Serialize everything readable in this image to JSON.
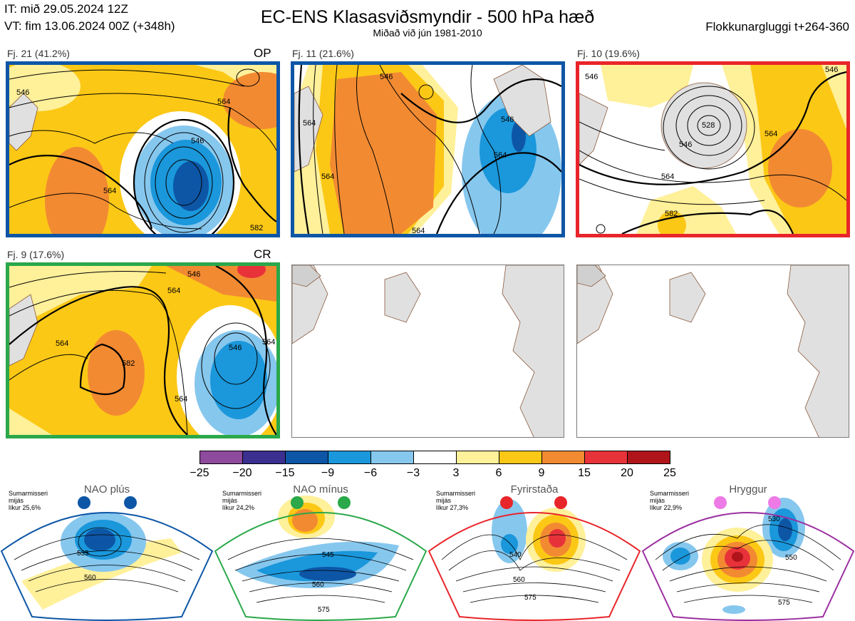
{
  "header": {
    "init_time": "IT: mið 29.05.2024 12Z",
    "valid_time": "VT: fim 13.06.2024 00Z  (+348h)",
    "title": "EC-ENS Klasasviðsmyndir - 500 hPa hæð",
    "subtitle": "Miðað við jún 1981-2010",
    "cluster_window": "Flokkunargluggi t+264-360"
  },
  "clusters": [
    {
      "label": "Fj. 21 (41.2%)",
      "tag": "OP",
      "frame_color": "#0d56a6",
      "regime": "NAO plús",
      "contour_labels": [
        "546",
        "564",
        "564",
        "546",
        "582"
      ]
    },
    {
      "label": "Fj. 11 (21.6%)",
      "tag": "",
      "frame_color": "#0d56a6",
      "regime": "NAO plús",
      "contour_labels": [
        "564",
        "564",
        "546",
        "564",
        "546",
        "564"
      ]
    },
    {
      "label": "Fj. 10 (19.6%)",
      "tag": "",
      "frame_color": "#e8252a",
      "regime": "Fyrirstaða",
      "contour_labels": [
        "546",
        "528",
        "546",
        "564",
        "564",
        "582",
        "546"
      ]
    },
    {
      "label": "Fj. 9 (17.6%)",
      "tag": "CR",
      "frame_color": "#2aa84a",
      "regime": "NAO mínus",
      "contour_labels": [
        "546",
        "564",
        "564",
        "582",
        "546",
        "564",
        "564"
      ]
    }
  ],
  "empty_panels": [
    {
      "label": "empty-panel-1"
    },
    {
      "label": "empty-panel-2"
    }
  ],
  "colorbar": {
    "ticks": [
      "−25",
      "−20",
      "−15",
      "−9",
      "−6",
      "−3",
      "3",
      "6",
      "9",
      "15",
      "20",
      "25"
    ],
    "colors": [
      "#8e4a9c",
      "#3b2f8f",
      "#0d56a6",
      "#1b97db",
      "#86c7ee",
      "#ffffff",
      "#fff09a",
      "#fcc816",
      "#f28a32",
      "#e8323a",
      "#b0141b"
    ]
  },
  "regimes": [
    {
      "name": "NAO plús",
      "season": "Sumarmisseri",
      "kind": "mijás",
      "probability": "líkur 25,6%",
      "color": "#0d56a6",
      "contour_labels": [
        "535",
        "560"
      ]
    },
    {
      "name": "NAO mínus",
      "season": "Sumarmisseri",
      "kind": "mijás",
      "probability": "líkur 24,2%",
      "color": "#2aa84a",
      "contour_labels": [
        "545",
        "560",
        "575"
      ]
    },
    {
      "name": "Fyrirstaða",
      "season": "Sumarmisseri",
      "kind": "mijás",
      "probability": "líkur 27,3%",
      "color": "#e8252a",
      "contour_labels": [
        "540",
        "560",
        "575"
      ]
    },
    {
      "name": "Hryggur",
      "season": "Sumarmisseri",
      "kind": "mijás",
      "probability": "líkur 22,9%",
      "color": "#9b2fa0",
      "dot_color": "#ee7ae6",
      "contour_labels": [
        "530",
        "550",
        "575"
      ]
    }
  ]
}
